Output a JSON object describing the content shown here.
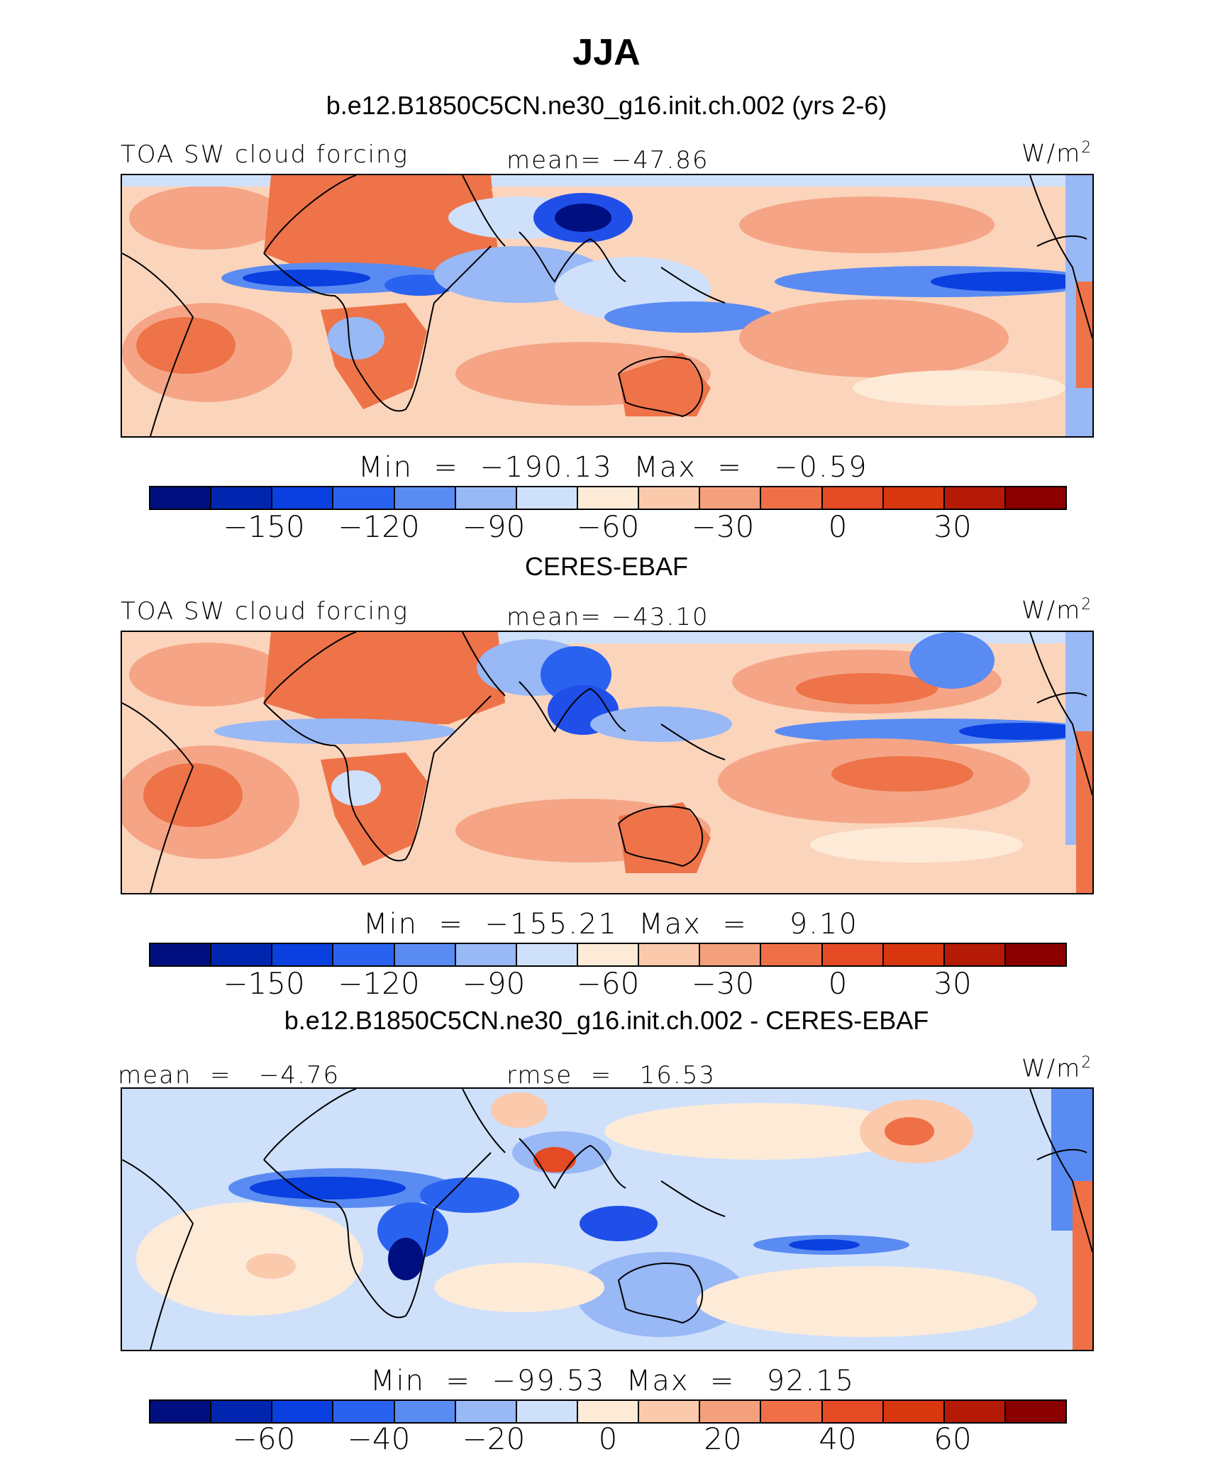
{
  "title": "JJA",
  "panels": [
    {
      "caption": "b.e12.B1850C5CN.ne30_g16.init.ch.002 (yrs 2-6)",
      "left_label": "TOA SW cloud forcing",
      "center_label": "mean= −47.86",
      "units": "W/m",
      "units_sup": "2",
      "minmax": "Min  =  −190.13  Max  =   −0.59",
      "colorbar_ticks": [
        "−150",
        "−120",
        "−90",
        "−60",
        "−30",
        "0",
        "30"
      ],
      "palette": "full"
    },
    {
      "caption": "CERES-EBAF",
      "left_label": "TOA SW cloud forcing",
      "center_label": "mean= −43.10",
      "units": "W/m",
      "units_sup": "2",
      "minmax": "Min  =  −155.21  Max  =    9.10",
      "colorbar_ticks": [
        "−150",
        "−120",
        "−90",
        "−60",
        "−30",
        "0",
        "30"
      ],
      "palette": "full"
    },
    {
      "caption": "b.e12.B1850C5CN.ne30_g16.init.ch.002 - CERES-EBAF",
      "left_label": "mean  =   −4.76",
      "center_label": "rmse  =   16.53",
      "units": "W/m",
      "units_sup": "2",
      "minmax": "Min  =  −99.53  Max  =   92.15",
      "colorbar_ticks": [
        "−60",
        "−40",
        "−20",
        "0",
        "20",
        "40",
        "60"
      ],
      "palette": "full"
    }
  ],
  "colorbar_colors": [
    "#000f80",
    "#0026b0",
    "#0a3fe0",
    "#2a62f0",
    "#5a8bf2",
    "#98b8f6",
    "#cfe0fb",
    "#fdebd8",
    "#fbc9ac",
    "#f5a07c",
    "#ef7047",
    "#e44a23",
    "#d8360f",
    "#b51a06",
    "#8a0000"
  ],
  "map_colors": {
    "ocean_light": "#fbd4bc",
    "ocean_mid": "#f5a586",
    "land_warm": "#ee7349",
    "deep_blue": "#1f4fe8",
    "mid_blue": "#5a8bf2",
    "light_blue": "#cfe0fb",
    "pale": "#fdebd8",
    "coast": "#000000"
  }
}
